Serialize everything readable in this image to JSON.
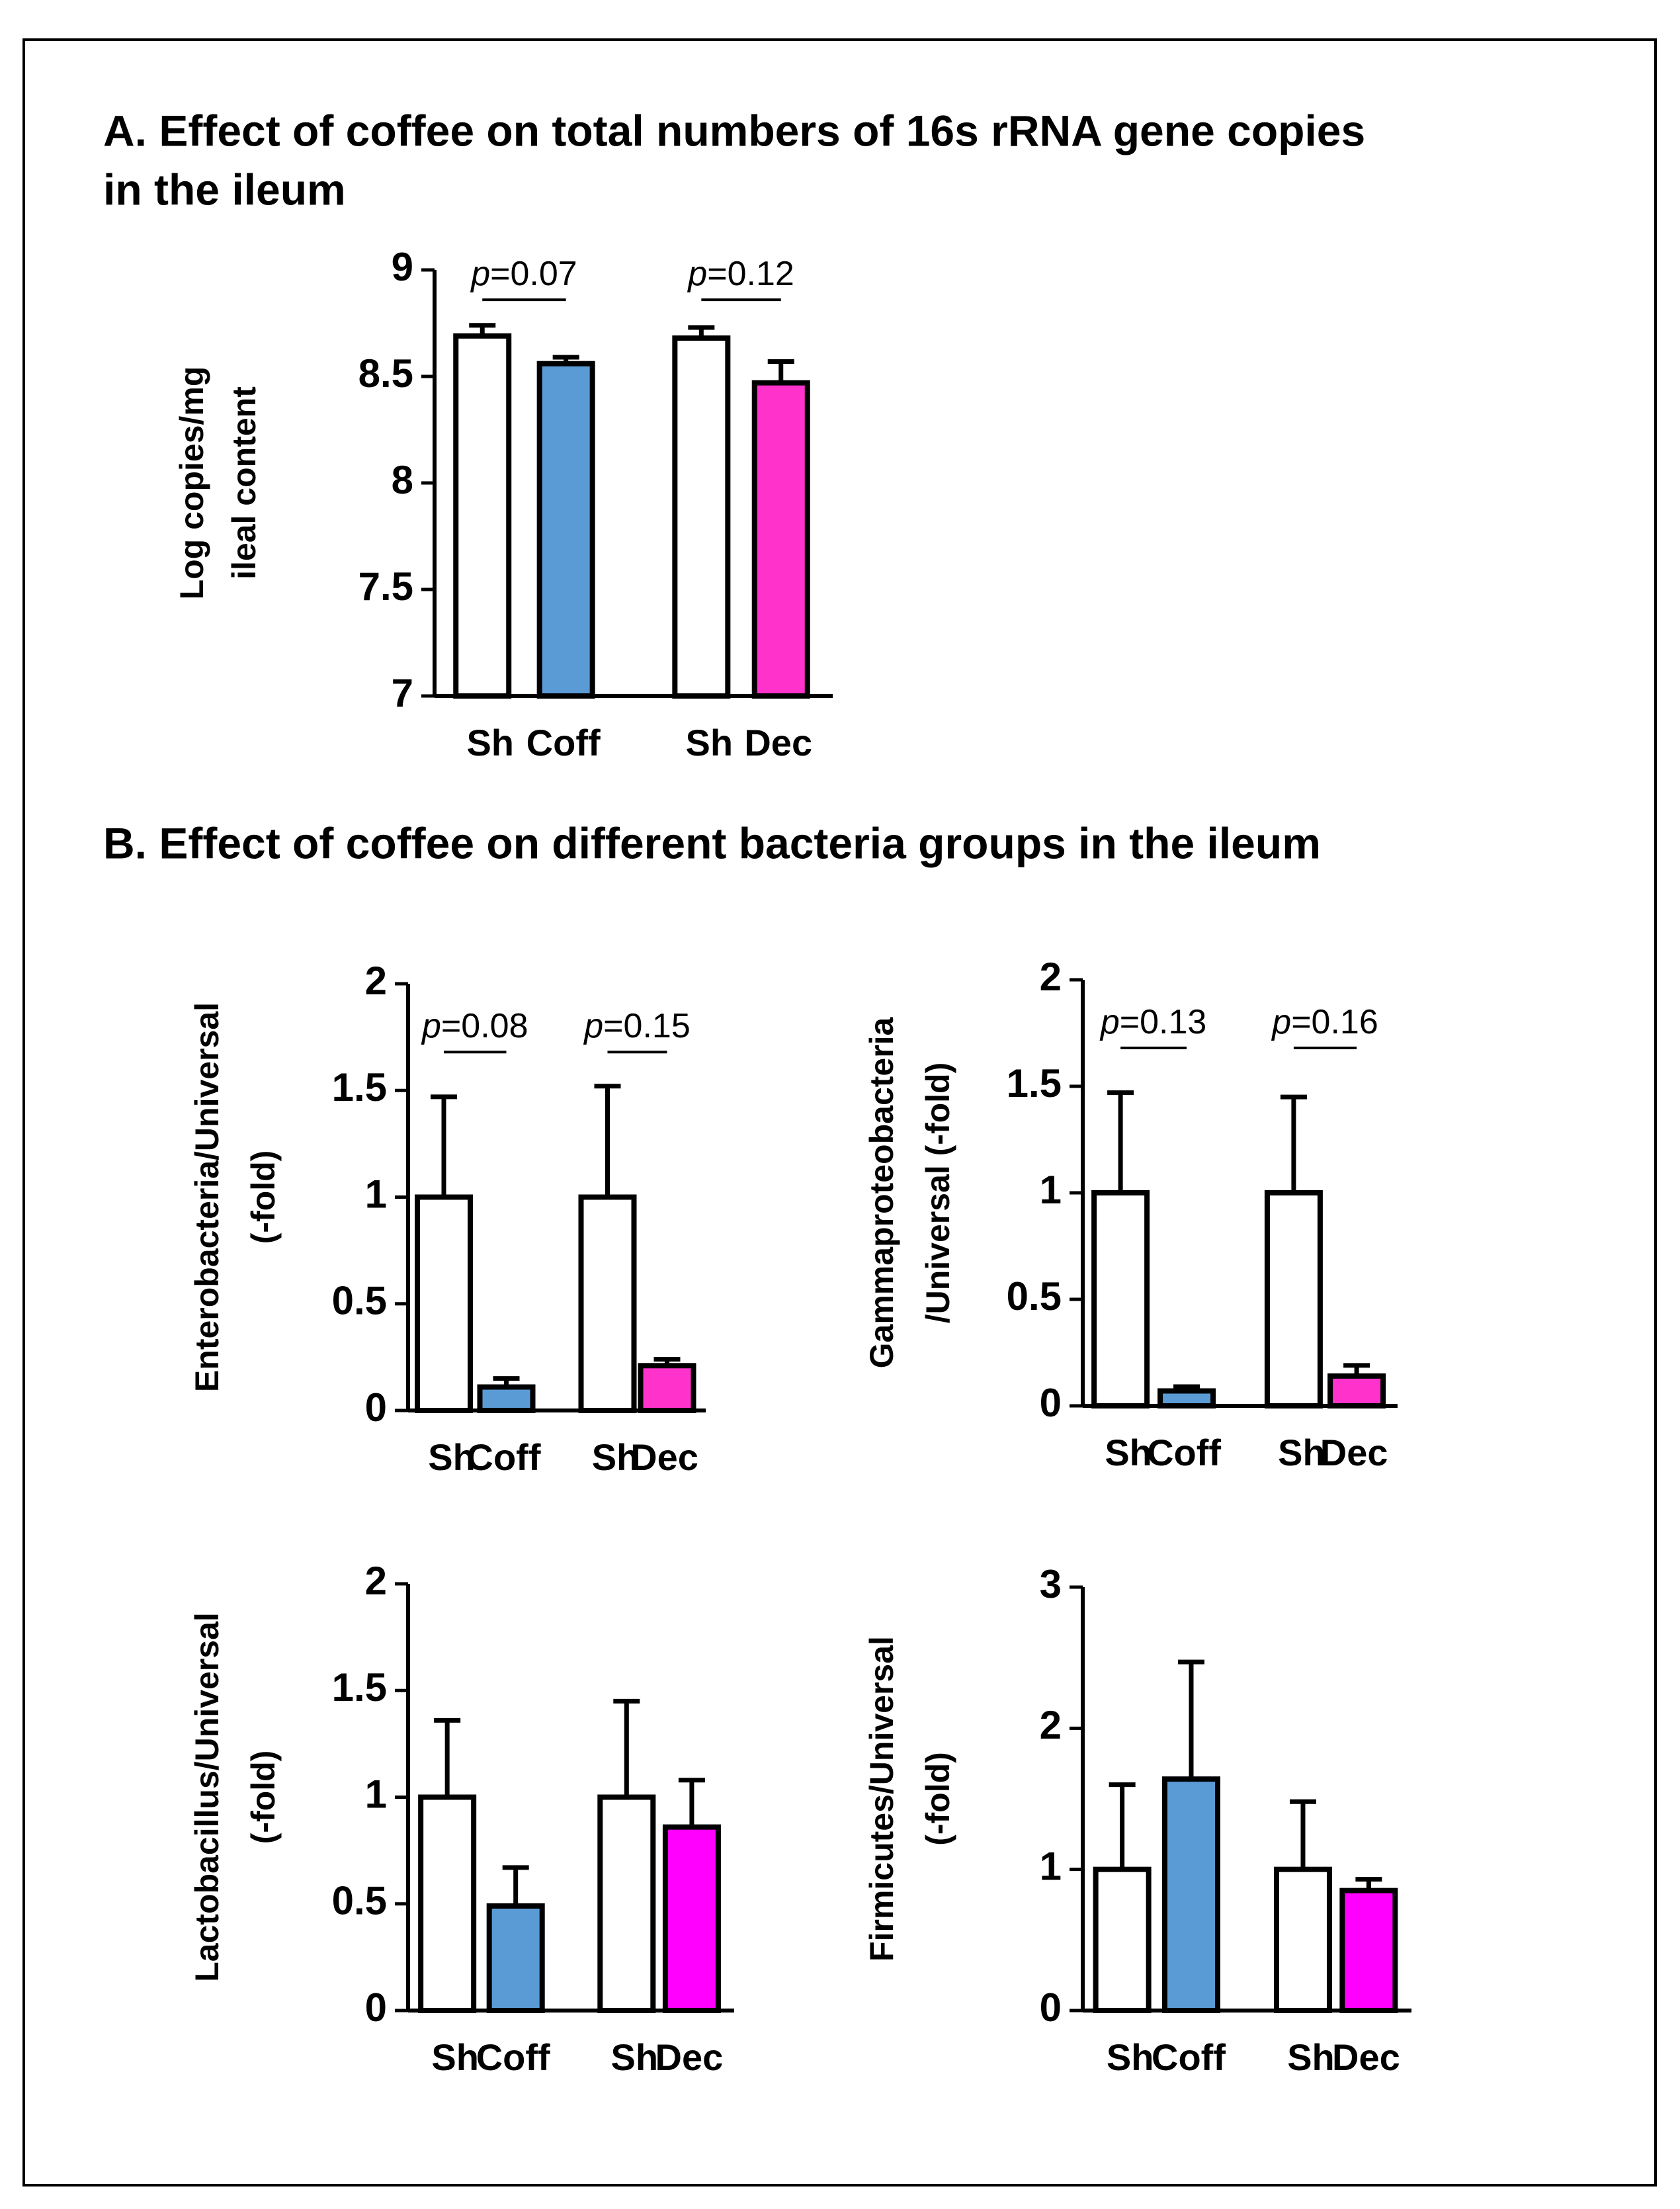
{
  "title_a": [
    "A.  Effect of coffee on total numbers of 16s rRNA gene copies",
    "in the ileum"
  ],
  "title_b": "B. Effect of coffee on different bacteria groups in the ileum",
  "chart_data": [
    {
      "type": "bar",
      "ylabel": [
        "Log copies/mg",
        "ileal content"
      ],
      "categories": [
        "Sh",
        "Coff",
        "Sh",
        "Dec"
      ],
      "values": [
        8.69,
        8.56,
        8.68,
        8.47
      ],
      "errors": [
        0.05,
        0.03,
        0.05,
        0.1
      ],
      "colors": [
        "#ffffff",
        "#5b9bd5",
        "#ffffff",
        "#ff33cc"
      ],
      "ylim": [
        7,
        9
      ],
      "yticks": [
        7,
        7.5,
        8,
        8.5,
        9
      ],
      "annotations": [
        {
          "label": "p=0.07",
          "bars": [
            0,
            1
          ]
        },
        {
          "label": "p=0.12",
          "bars": [
            2,
            3
          ]
        }
      ]
    },
    {
      "type": "bar",
      "ylabel": [
        "Enterobacteria/Universal",
        "(-fold)"
      ],
      "categories": [
        "Sh",
        "Coff",
        "Sh",
        "Dec"
      ],
      "values": [
        1,
        0.11,
        1,
        0.21
      ],
      "errors": [
        0.47,
        0.04,
        0.52,
        0.03
      ],
      "colors": [
        "#ffffff",
        "#5b9bd5",
        "#ffffff",
        "#ff33cc"
      ],
      "ylim": [
        0,
        2
      ],
      "yticks": [
        0,
        0.5,
        1,
        1.5,
        2
      ],
      "annotations": [
        {
          "label": "p=0.08",
          "bars": [
            0,
            1
          ]
        },
        {
          "label": "p=0.15",
          "bars": [
            2,
            3
          ]
        }
      ]
    },
    {
      "type": "bar",
      "ylabel": [
        "Gammaproteobacteria",
        "/Universal (-fold)"
      ],
      "categories": [
        "Sh",
        "Coff",
        "Sh",
        "Dec"
      ],
      "values": [
        1,
        0.07,
        1,
        0.14
      ],
      "errors": [
        0.47,
        0.02,
        0.45,
        0.05
      ],
      "colors": [
        "#ffffff",
        "#5b9bd5",
        "#ffffff",
        "#ff33cc"
      ],
      "ylim": [
        0,
        2
      ],
      "yticks": [
        0,
        0.5,
        1,
        1.5,
        2
      ],
      "annotations": [
        {
          "label": "p=0.13",
          "bars": [
            0,
            1
          ]
        },
        {
          "label": "p=0.16",
          "bars": [
            2,
            3
          ]
        }
      ]
    },
    {
      "type": "bar",
      "ylabel": [
        "Lactobacillus/Universal",
        "(-fold)"
      ],
      "categories": [
        "Sh",
        "Coff",
        "Sh",
        "Dec"
      ],
      "values": [
        1,
        0.49,
        1,
        0.86
      ],
      "errors": [
        0.36,
        0.18,
        0.45,
        0.22
      ],
      "colors": [
        "#ffffff",
        "#5b9bd5",
        "#ffffff",
        "#ff00ff"
      ],
      "ylim": [
        0,
        2
      ],
      "yticks": [
        0,
        0.5,
        1,
        1.5,
        2
      ]
    },
    {
      "type": "bar",
      "ylabel": [
        "Firmicutes/Universal",
        "(-fold)"
      ],
      "categories": [
        "Sh",
        "Coff",
        "Sh",
        "Dec"
      ],
      "values": [
        1,
        1.64,
        1,
        0.85
      ],
      "errors": [
        0.6,
        0.83,
        0.48,
        0.08
      ],
      "colors": [
        "#ffffff",
        "#5b9bd5",
        "#ffffff",
        "#ff00ff"
      ],
      "ylim": [
        0,
        3
      ],
      "yticks": [
        0,
        1,
        2,
        3
      ]
    }
  ]
}
